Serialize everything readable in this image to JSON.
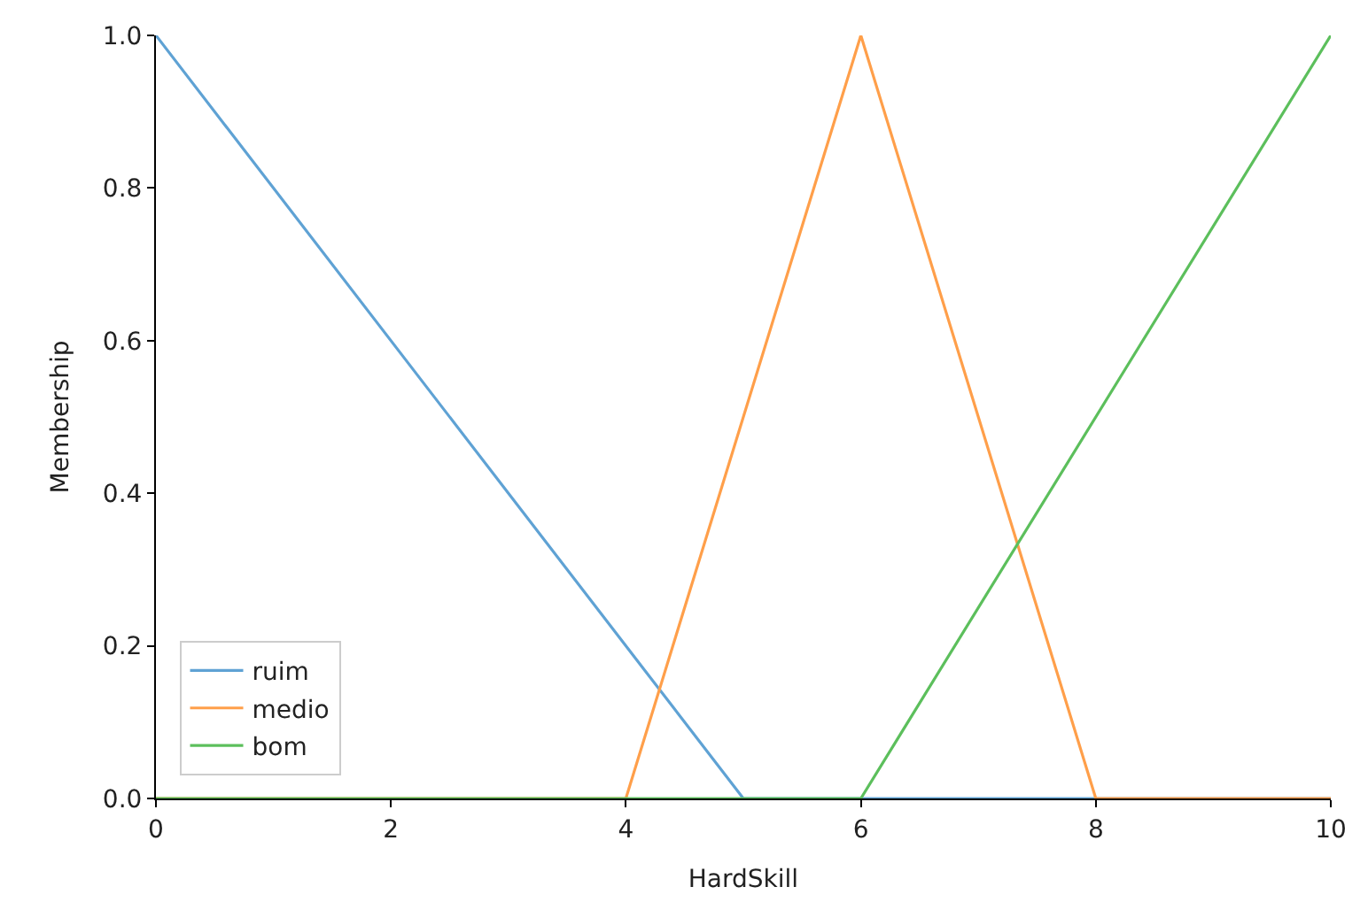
{
  "chart_data": {
    "type": "line",
    "xlabel": "HardSkill",
    "ylabel": "Membership",
    "xlim": [
      0,
      10
    ],
    "xticks": [
      0,
      2,
      4,
      6,
      8,
      10
    ],
    "ylim": [
      0,
      1.0
    ],
    "yticks": [
      {
        "value": 0,
        "label": "0.0"
      },
      {
        "value": 0.2,
        "label": "0.2"
      },
      {
        "value": 0.4,
        "label": "0.4"
      },
      {
        "value": 0.6,
        "label": "0.6"
      },
      {
        "value": 0.8,
        "label": "0.8"
      },
      {
        "value": 1.0,
        "label": "1.0"
      }
    ],
    "legend": "bottom left",
    "marker": "none",
    "line_style": "solid",
    "series": [
      {
        "name": "ruim",
        "color": "#5fa2d4",
        "x": [
          0,
          5,
          10
        ],
        "values": [
          1,
          0,
          0
        ]
      },
      {
        "name": "medio",
        "color": "#ff9f4a",
        "x": [
          0,
          4,
          6,
          8,
          10
        ],
        "values": [
          0,
          0,
          1,
          0,
          0
        ]
      },
      {
        "name": "bom",
        "color": "#5cbf5c",
        "x": [
          0,
          6,
          10
        ],
        "values": [
          0,
          0,
          1
        ]
      }
    ]
  }
}
